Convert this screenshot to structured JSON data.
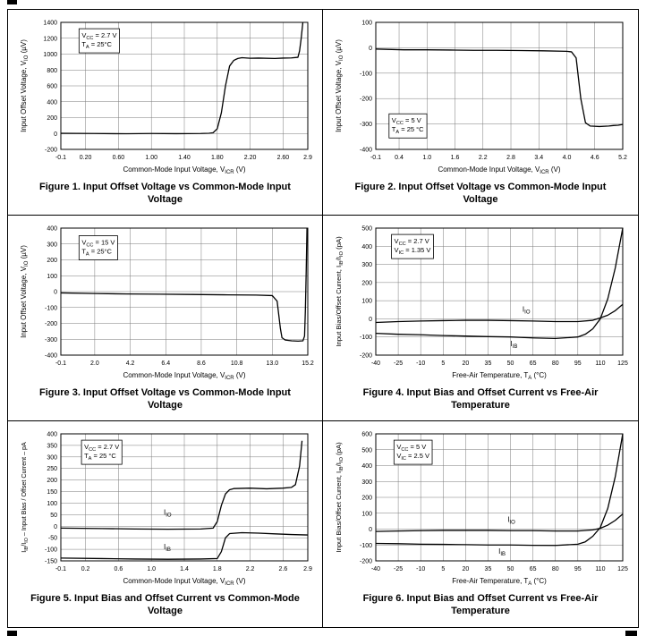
{
  "colors": {
    "grid": "#7a7a7a",
    "frame": "#000000",
    "curve": "#000000",
    "text": "#000000"
  },
  "chart_data": [
    {
      "caption": "Figure 1. Input Offset Voltage vs Common-Mode Input Voltage",
      "type": "line",
      "xlabel": "Common-Mode Input Voltage, V|ICR| (V)",
      "ylabel": "Input Offset Voltage, V|IO| (µV)",
      "xlim": [
        -0.1,
        2.9
      ],
      "ylim": [
        -200,
        1400
      ],
      "xticks": [
        [
          -0.1,
          "-0.1"
        ],
        [
          0.2,
          "0.20"
        ],
        [
          0.6,
          "0.60"
        ],
        [
          1.0,
          "1.00"
        ],
        [
          1.4,
          "1.40"
        ],
        [
          1.8,
          "1.80"
        ],
        [
          2.2,
          "2.20"
        ],
        [
          2.6,
          "2.60"
        ],
        [
          2.9,
          "2.9"
        ]
      ],
      "yticks": [
        1400,
        1200,
        1000,
        800,
        600,
        400,
        200,
        0,
        -200
      ],
      "annotation": {
        "lines": [
          "V|CC| = 2.7 V",
          "T|A| = 25°C"
        ],
        "fx": 0.07,
        "fy": 0.05
      },
      "series": [
        {
          "name": "VIO",
          "points": [
            [
              -0.1,
              2
            ],
            [
              0.3,
              0
            ],
            [
              0.7,
              -3
            ],
            [
              1.0,
              0
            ],
            [
              1.3,
              -2
            ],
            [
              1.6,
              0
            ],
            [
              1.7,
              3
            ],
            [
              1.75,
              10
            ],
            [
              1.8,
              60
            ],
            [
              1.85,
              260
            ],
            [
              1.9,
              600
            ],
            [
              1.95,
              850
            ],
            [
              2.0,
              920
            ],
            [
              2.05,
              945
            ],
            [
              2.1,
              955
            ],
            [
              2.2,
              948
            ],
            [
              2.3,
              950
            ],
            [
              2.5,
              945
            ],
            [
              2.6,
              950
            ],
            [
              2.7,
              952
            ],
            [
              2.78,
              960
            ],
            [
              2.8,
              1040
            ],
            [
              2.82,
              1200
            ],
            [
              2.84,
              1400
            ]
          ]
        }
      ],
      "curve_labels": []
    },
    {
      "caption": "Figure 2. Input Offset Voltage vs Common-Mode Input Voltage",
      "type": "line",
      "xlabel": "Common-Mode Input Voltage, V|ICR| (V)",
      "ylabel": "Input Offset Voltage, V|IO| (µV)",
      "xlim": [
        -0.1,
        5.2
      ],
      "ylim": [
        -400,
        100
      ],
      "xticks": [
        [
          -0.1,
          "-0.1"
        ],
        [
          0.4,
          "0.4"
        ],
        [
          1.0,
          "1.0"
        ],
        [
          1.6,
          "1.6"
        ],
        [
          2.2,
          "2.2"
        ],
        [
          2.8,
          "2.8"
        ],
        [
          3.4,
          "3.4"
        ],
        [
          4.0,
          "4.0"
        ],
        [
          4.6,
          "4.6"
        ],
        [
          5.2,
          "5.2"
        ]
      ],
      "yticks": [
        100,
        0,
        -100,
        -200,
        -300,
        -400
      ],
      "annotation": {
        "lines": [
          "V|CC| = 5 V",
          "T|A| = 25 °C"
        ],
        "fx": 0.05,
        "fy": 0.72
      },
      "series": [
        {
          "name": "VIO",
          "points": [
            [
              -0.1,
              -5
            ],
            [
              0.5,
              -8
            ],
            [
              1.0,
              -8
            ],
            [
              1.5,
              -9
            ],
            [
              2.0,
              -10
            ],
            [
              2.5,
              -10
            ],
            [
              3.0,
              -11
            ],
            [
              3.5,
              -12
            ],
            [
              4.0,
              -14
            ],
            [
              4.1,
              -16
            ],
            [
              4.2,
              -40
            ],
            [
              4.3,
              -200
            ],
            [
              4.4,
              -295
            ],
            [
              4.5,
              -308
            ],
            [
              4.7,
              -310
            ],
            [
              4.9,
              -308
            ],
            [
              5.0,
              -306
            ],
            [
              5.1,
              -305
            ],
            [
              5.2,
              -302
            ]
          ]
        }
      ],
      "curve_labels": []
    },
    {
      "caption": "Figure 3. Input Offset Voltage vs Common-Mode Input Voltage",
      "type": "line",
      "xlabel": "Common-Mode Input Voltage, V|ICR| (V)",
      "ylabel": "Input Offset Voltage, V|IO| (µV)",
      "xlim": [
        -0.1,
        15.2
      ],
      "ylim": [
        -400,
        400
      ],
      "xticks": [
        [
          -0.1,
          "-0.1"
        ],
        [
          2.0,
          "2.0"
        ],
        [
          4.2,
          "4.2"
        ],
        [
          6.4,
          "6.4"
        ],
        [
          8.6,
          "8.6"
        ],
        [
          10.8,
          "10.8"
        ],
        [
          13.0,
          "13.0"
        ],
        [
          15.2,
          "15.2"
        ]
      ],
      "yticks": [
        400,
        300,
        200,
        100,
        0,
        -100,
        -200,
        -300,
        -400
      ],
      "annotation": {
        "lines": [
          "V|CC| = 15 V",
          "T|A| = 25°C"
        ],
        "fx": 0.07,
        "fy": 0.06
      },
      "series": [
        {
          "name": "VIO",
          "points": [
            [
              -0.1,
              -8
            ],
            [
              2,
              -12
            ],
            [
              4,
              -15
            ],
            [
              6,
              -16
            ],
            [
              8,
              -18
            ],
            [
              10,
              -20
            ],
            [
              12,
              -22
            ],
            [
              13.0,
              -25
            ],
            [
              13.3,
              -60
            ],
            [
              13.5,
              -230
            ],
            [
              13.6,
              -290
            ],
            [
              13.8,
              -305
            ],
            [
              14.2,
              -310
            ],
            [
              14.6,
              -312
            ],
            [
              14.9,
              -310
            ],
            [
              15.0,
              -280
            ],
            [
              15.05,
              -120
            ],
            [
              15.1,
              120
            ],
            [
              15.15,
              400
            ]
          ]
        }
      ],
      "curve_labels": []
    },
    {
      "caption": "Figure 4. Input Bias and Offset Current vs Free-Air Temperature",
      "type": "line",
      "xlabel": "Free-Air Temperature, T|A| (°C)",
      "ylabel": "Input Bias/Offset Current, I|IB|/I|IO| (pA)",
      "xlim": [
        -40,
        125
      ],
      "ylim": [
        -200,
        500
      ],
      "xticks": [
        [
          -40,
          "-40"
        ],
        [
          -25,
          "-25"
        ],
        [
          -10,
          "-10"
        ],
        [
          5,
          "5"
        ],
        [
          20,
          "20"
        ],
        [
          35,
          "35"
        ],
        [
          50,
          "50"
        ],
        [
          65,
          "65"
        ],
        [
          80,
          "80"
        ],
        [
          95,
          "95"
        ],
        [
          110,
          "110"
        ],
        [
          125,
          "125"
        ]
      ],
      "yticks": [
        500,
        400,
        300,
        200,
        100,
        0,
        -100,
        -200
      ],
      "annotation": {
        "lines": [
          "V|CC| = 2.7 V",
          "V|IC| = 1.35 V"
        ],
        "fx": 0.06,
        "fy": 0.05
      },
      "series": [
        {
          "name": "IIO",
          "points": [
            [
              -40,
              -20
            ],
            [
              -25,
              -15
            ],
            [
              -10,
              -12
            ],
            [
              5,
              -10
            ],
            [
              20,
              -8
            ],
            [
              35,
              -8
            ],
            [
              50,
              -10
            ],
            [
              65,
              -12
            ],
            [
              80,
              -15
            ],
            [
              95,
              -15
            ],
            [
              105,
              -8
            ],
            [
              110,
              5
            ],
            [
              115,
              20
            ],
            [
              120,
              45
            ],
            [
              125,
              80
            ]
          ]
        },
        {
          "name": "IIB",
          "points": [
            [
              -40,
              -80
            ],
            [
              -25,
              -85
            ],
            [
              -10,
              -88
            ],
            [
              5,
              -92
            ],
            [
              20,
              -95
            ],
            [
              35,
              -98
            ],
            [
              50,
              -100
            ],
            [
              65,
              -105
            ],
            [
              80,
              -108
            ],
            [
              95,
              -100
            ],
            [
              100,
              -85
            ],
            [
              105,
              -55
            ],
            [
              110,
              0
            ],
            [
              115,
              110
            ],
            [
              120,
              280
            ],
            [
              125,
              500
            ]
          ]
        }
      ],
      "curve_labels": [
        {
          "text": "I|IO|",
          "x": 58,
          "y": 40
        },
        {
          "text": "I|IB|",
          "x": 50,
          "y": -150
        }
      ]
    },
    {
      "caption": "Figure 5. Input Bias and Offset Current vs Common-Mode Voltage",
      "type": "line",
      "xlabel": "Common-Mode Input Voltage, V|ICR| (V)",
      "ylabel": "I|IB|/I|IO| – Input Bias / Offset Current – pA",
      "xlim": [
        -0.1,
        2.9
      ],
      "ylim": [
        -150,
        400
      ],
      "xticks": [
        [
          -0.1,
          "-0.1"
        ],
        [
          0.2,
          "0.2"
        ],
        [
          0.6,
          "0.6"
        ],
        [
          1.0,
          "1.0"
        ],
        [
          1.4,
          "1.4"
        ],
        [
          1.8,
          "1.8"
        ],
        [
          2.2,
          "2.2"
        ],
        [
          2.6,
          "2.6"
        ],
        [
          2.9,
          "2.9"
        ]
      ],
      "yticks": [
        400,
        350,
        300,
        250,
        200,
        150,
        100,
        50,
        0,
        -50,
        -100,
        -150
      ],
      "annotation": {
        "lines": [
          "V|CC| = 2.7 V",
          "T|A| = 25 °C"
        ],
        "fx": 0.08,
        "fy": 0.05
      },
      "series": [
        {
          "name": "IIO",
          "points": [
            [
              -0.1,
              -8
            ],
            [
              0.4,
              -10
            ],
            [
              0.8,
              -12
            ],
            [
              1.2,
              -13
            ],
            [
              1.6,
              -12
            ],
            [
              1.75,
              -8
            ],
            [
              1.8,
              20
            ],
            [
              1.85,
              90
            ],
            [
              1.9,
              140
            ],
            [
              1.95,
              158
            ],
            [
              2.0,
              163
            ],
            [
              2.2,
              165
            ],
            [
              2.4,
              162
            ],
            [
              2.6,
              165
            ],
            [
              2.7,
              168
            ],
            [
              2.75,
              180
            ],
            [
              2.8,
              260
            ],
            [
              2.83,
              370
            ]
          ]
        },
        {
          "name": "IIB",
          "points": [
            [
              -0.1,
              -138
            ],
            [
              0.4,
              -140
            ],
            [
              0.8,
              -142
            ],
            [
              1.2,
              -143
            ],
            [
              1.6,
              -142
            ],
            [
              1.8,
              -140
            ],
            [
              1.85,
              -110
            ],
            [
              1.9,
              -50
            ],
            [
              1.95,
              -32
            ],
            [
              2.1,
              -28
            ],
            [
              2.3,
              -30
            ],
            [
              2.5,
              -33
            ],
            [
              2.7,
              -36
            ],
            [
              2.9,
              -38
            ]
          ]
        }
      ],
      "curve_labels": [
        {
          "text": "I|IO|",
          "x": 1.15,
          "y": 50
        },
        {
          "text": "I|IB|",
          "x": 1.15,
          "y": -100
        }
      ]
    },
    {
      "caption": "Figure 6. Input Bias and Offset Current vs Free-Air Temperature",
      "type": "line",
      "xlabel": "Free-Air Temperature, T|A| (°C)",
      "ylabel": "Input Bias/Offset Current, I|IB|/I|IO| (pA)",
      "xlim": [
        -40,
        125
      ],
      "ylim": [
        -200,
        600
      ],
      "xticks": [
        [
          -40,
          "-40"
        ],
        [
          -25,
          "-25"
        ],
        [
          -10,
          "-10"
        ],
        [
          5,
          "5"
        ],
        [
          20,
          "20"
        ],
        [
          35,
          "35"
        ],
        [
          50,
          "50"
        ],
        [
          65,
          "65"
        ],
        [
          80,
          "80"
        ],
        [
          95,
          "95"
        ],
        [
          110,
          "110"
        ],
        [
          125,
          "125"
        ]
      ],
      "yticks": [
        600,
        500,
        400,
        300,
        200,
        100,
        0,
        -100,
        -200
      ],
      "annotation": {
        "lines": [
          "V|CC| = 5 V",
          "V|IC| = 2.5 V"
        ],
        "fx": 0.07,
        "fy": 0.05
      },
      "series": [
        {
          "name": "IIO",
          "points": [
            [
              -40,
              -15
            ],
            [
              -25,
              -12
            ],
            [
              -10,
              -10
            ],
            [
              5,
              -8
            ],
            [
              20,
              -8
            ],
            [
              35,
              -8
            ],
            [
              50,
              -10
            ],
            [
              65,
              -10
            ],
            [
              80,
              -12
            ],
            [
              95,
              -12
            ],
            [
              105,
              -5
            ],
            [
              110,
              5
            ],
            [
              115,
              25
            ],
            [
              120,
              55
            ],
            [
              125,
              95
            ]
          ]
        },
        {
          "name": "IIB",
          "points": [
            [
              -40,
              -90
            ],
            [
              -25,
              -92
            ],
            [
              -10,
              -95
            ],
            [
              5,
              -96
            ],
            [
              20,
              -98
            ],
            [
              35,
              -100
            ],
            [
              50,
              -100
            ],
            [
              65,
              -102
            ],
            [
              80,
              -103
            ],
            [
              95,
              -95
            ],
            [
              100,
              -80
            ],
            [
              105,
              -45
            ],
            [
              110,
              10
            ],
            [
              115,
              130
            ],
            [
              120,
              330
            ],
            [
              125,
              600
            ]
          ]
        }
      ],
      "curve_labels": [
        {
          "text": "I|IO|",
          "x": 48,
          "y": 45
        },
        {
          "text": "I|IB|",
          "x": 42,
          "y": -155
        }
      ]
    }
  ]
}
